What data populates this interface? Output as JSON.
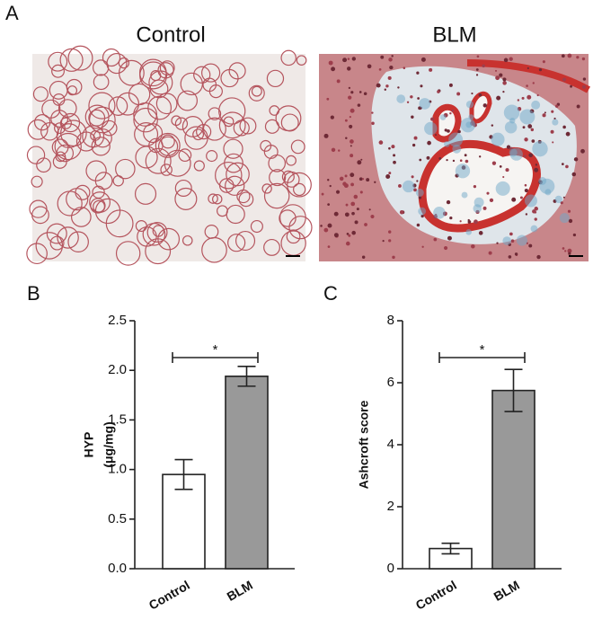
{
  "panel_a": {
    "label": "A",
    "images": [
      {
        "title": "Control"
      },
      {
        "title": "BLM"
      }
    ]
  },
  "chart_data": [
    {
      "type": "bar",
      "label": "B",
      "ylabel": [
        "HYP",
        "(μg/mg)"
      ],
      "categories": [
        "Control",
        "BLM"
      ],
      "values": [
        0.95,
        1.94
      ],
      "errors": [
        0.15,
        0.1
      ],
      "colors": [
        "#ffffff",
        "#999999"
      ],
      "ylim": [
        0,
        2.5
      ],
      "yticks": [
        {
          "value": 0,
          "label": "0.0"
        },
        {
          "value": 0.5,
          "label": "0.5"
        },
        {
          "value": 1,
          "label": "1.0"
        },
        {
          "value": 1.5,
          "label": "1.5"
        },
        {
          "value": 2,
          "label": "2.0"
        },
        2.5
      ],
      "significance": "*"
    },
    {
      "type": "bar",
      "label": "C",
      "ylabel": [
        "Ashcroft score"
      ],
      "categories": [
        "Control",
        "BLM"
      ],
      "values": [
        0.65,
        5.75
      ],
      "errors": [
        0.17,
        0.68
      ],
      "colors": [
        "#ffffff",
        "#999999"
      ],
      "ylim": [
        0,
        8
      ],
      "yticks": [
        0,
        2,
        4,
        6,
        8
      ],
      "significance": "*"
    }
  ]
}
